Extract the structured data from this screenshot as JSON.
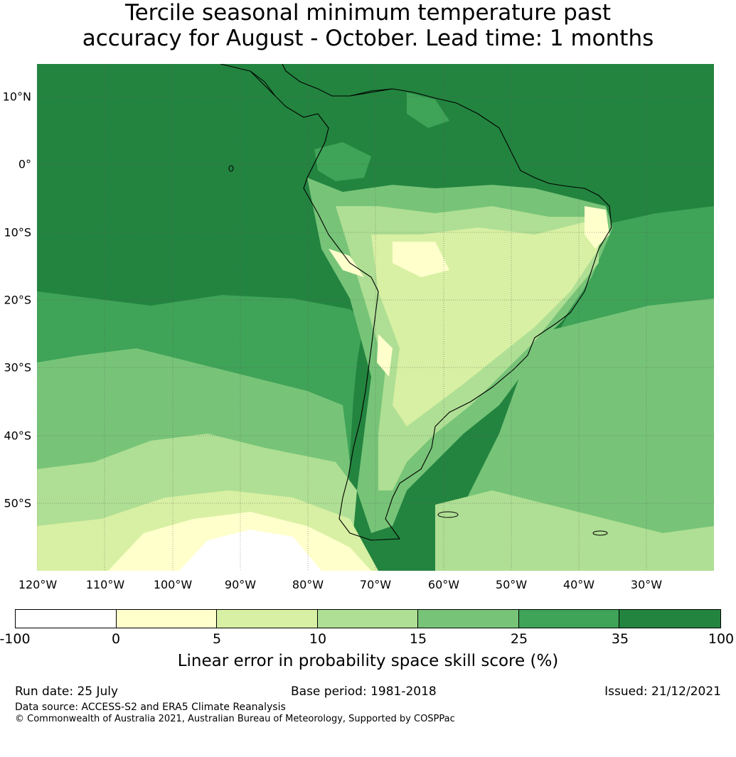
{
  "title": {
    "line1": "Tercile seasonal minimum temperature past",
    "line2": "accuracy for August - October. Lead time: 1 months"
  },
  "map": {
    "lat_labels": [
      "10°N",
      "0°",
      "10°S",
      "20°S",
      "30°S",
      "40°S",
      "50°S"
    ],
    "lon_labels": [
      "120°W",
      "110°W",
      "100°W",
      "90°W",
      "80°W",
      "70°W",
      "60°W",
      "50°W",
      "40°W",
      "30°W"
    ],
    "colors": {
      "ocean_dark": "#23843f",
      "band_35": "#3fa358",
      "band_25": "#77c478",
      "band_15": "#afdf94",
      "band_10": "#d8f0a3",
      "band_5": "#ffffcc",
      "band_neg": "#ffffff",
      "coast": "#000000",
      "grid": "#555555"
    }
  },
  "colorbar": {
    "ticks": [
      "-100",
      "0",
      "5",
      "10",
      "15",
      "25",
      "35",
      "100"
    ],
    "colors": [
      "#ffffff",
      "#ffffcc",
      "#d8f0a3",
      "#afdf94",
      "#77c478",
      "#3fa358",
      "#23843f"
    ],
    "label": "Linear error in probability space skill score (%)"
  },
  "footer": {
    "run_date": "Run date: 25 July",
    "base_period": "Base period: 1981-2018",
    "issued": "Issued: 21/12/2021",
    "data_source": "Data source: ACCESS-S2 and ERA5 Climate Reanalysis",
    "copyright": "© Commonwealth of Australia 2021, Australian Bureau of Meteorology, Supported by COSPPac"
  }
}
